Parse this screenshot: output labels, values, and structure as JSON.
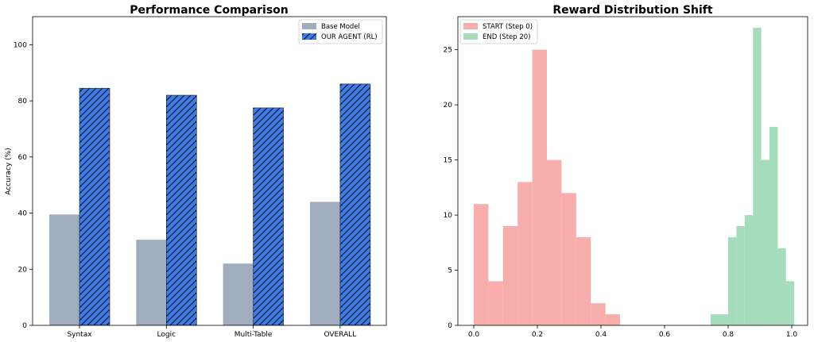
{
  "chart_data": [
    {
      "type": "bar",
      "title": "Performance Comparison",
      "xlabel": "",
      "ylabel": "Accuracy (%)",
      "ylim": [
        0,
        110
      ],
      "yticks": [
        0,
        20,
        40,
        60,
        80,
        100
      ],
      "categories": [
        "Syntax",
        "Logic",
        "Multi-Table",
        "OVERALL"
      ],
      "series": [
        {
          "name": "Base Model",
          "values": [
            39.5,
            30.5,
            22,
            44
          ],
          "color": "#a0adbe",
          "hatch": false
        },
        {
          "name": "OUR AGENT (RL)",
          "values": [
            84.5,
            82,
            77.5,
            86
          ],
          "color": "#3b7ded",
          "hatch": true
        }
      ],
      "legend_position": "top-right",
      "grid": false
    },
    {
      "type": "histogram",
      "title": "Reward Distribution Shift",
      "xlabel": "",
      "ylabel": "",
      "xlim": [
        -0.05,
        1.05
      ],
      "ylim": [
        0,
        28
      ],
      "xticks": [
        0.0,
        0.2,
        0.4,
        0.6,
        0.8,
        1.0
      ],
      "xtick_labels": [
        "0.0",
        "0.2",
        "0.4",
        "0.6",
        "0.8",
        "1.0"
      ],
      "yticks": [
        0,
        5,
        10,
        15,
        20,
        25
      ],
      "series": [
        {
          "name": "START (Step 0)",
          "color": "#f7adab",
          "bins": [
            {
              "x0": 0.0,
              "x1": 0.046,
              "count": 11
            },
            {
              "x0": 0.046,
              "x1": 0.092,
              "count": 4
            },
            {
              "x0": 0.092,
              "x1": 0.138,
              "count": 9
            },
            {
              "x0": 0.138,
              "x1": 0.184,
              "count": 13
            },
            {
              "x0": 0.184,
              "x1": 0.23,
              "count": 25
            },
            {
              "x0": 0.23,
              "x1": 0.276,
              "count": 15
            },
            {
              "x0": 0.276,
              "x1": 0.322,
              "count": 12
            },
            {
              "x0": 0.322,
              "x1": 0.368,
              "count": 8
            },
            {
              "x0": 0.368,
              "x1": 0.414,
              "count": 2
            },
            {
              "x0": 0.414,
              "x1": 0.46,
              "count": 1
            }
          ]
        },
        {
          "name": "END (Step 20)",
          "color": "#a5dcbc",
          "bins": [
            {
              "x0": 0.745,
              "x1": 0.8,
              "count": 1
            },
            {
              "x0": 0.8,
              "x1": 0.826,
              "count": 8
            },
            {
              "x0": 0.826,
              "x1": 0.852,
              "count": 9
            },
            {
              "x0": 0.852,
              "x1": 0.878,
              "count": 10
            },
            {
              "x0": 0.878,
              "x1": 0.904,
              "count": 27
            },
            {
              "x0": 0.904,
              "x1": 0.93,
              "count": 15
            },
            {
              "x0": 0.93,
              "x1": 0.956,
              "count": 18
            },
            {
              "x0": 0.956,
              "x1": 0.982,
              "count": 7
            },
            {
              "x0": 0.982,
              "x1": 1.008,
              "count": 4
            }
          ]
        }
      ],
      "legend_position": "top-left",
      "grid": false
    }
  ]
}
